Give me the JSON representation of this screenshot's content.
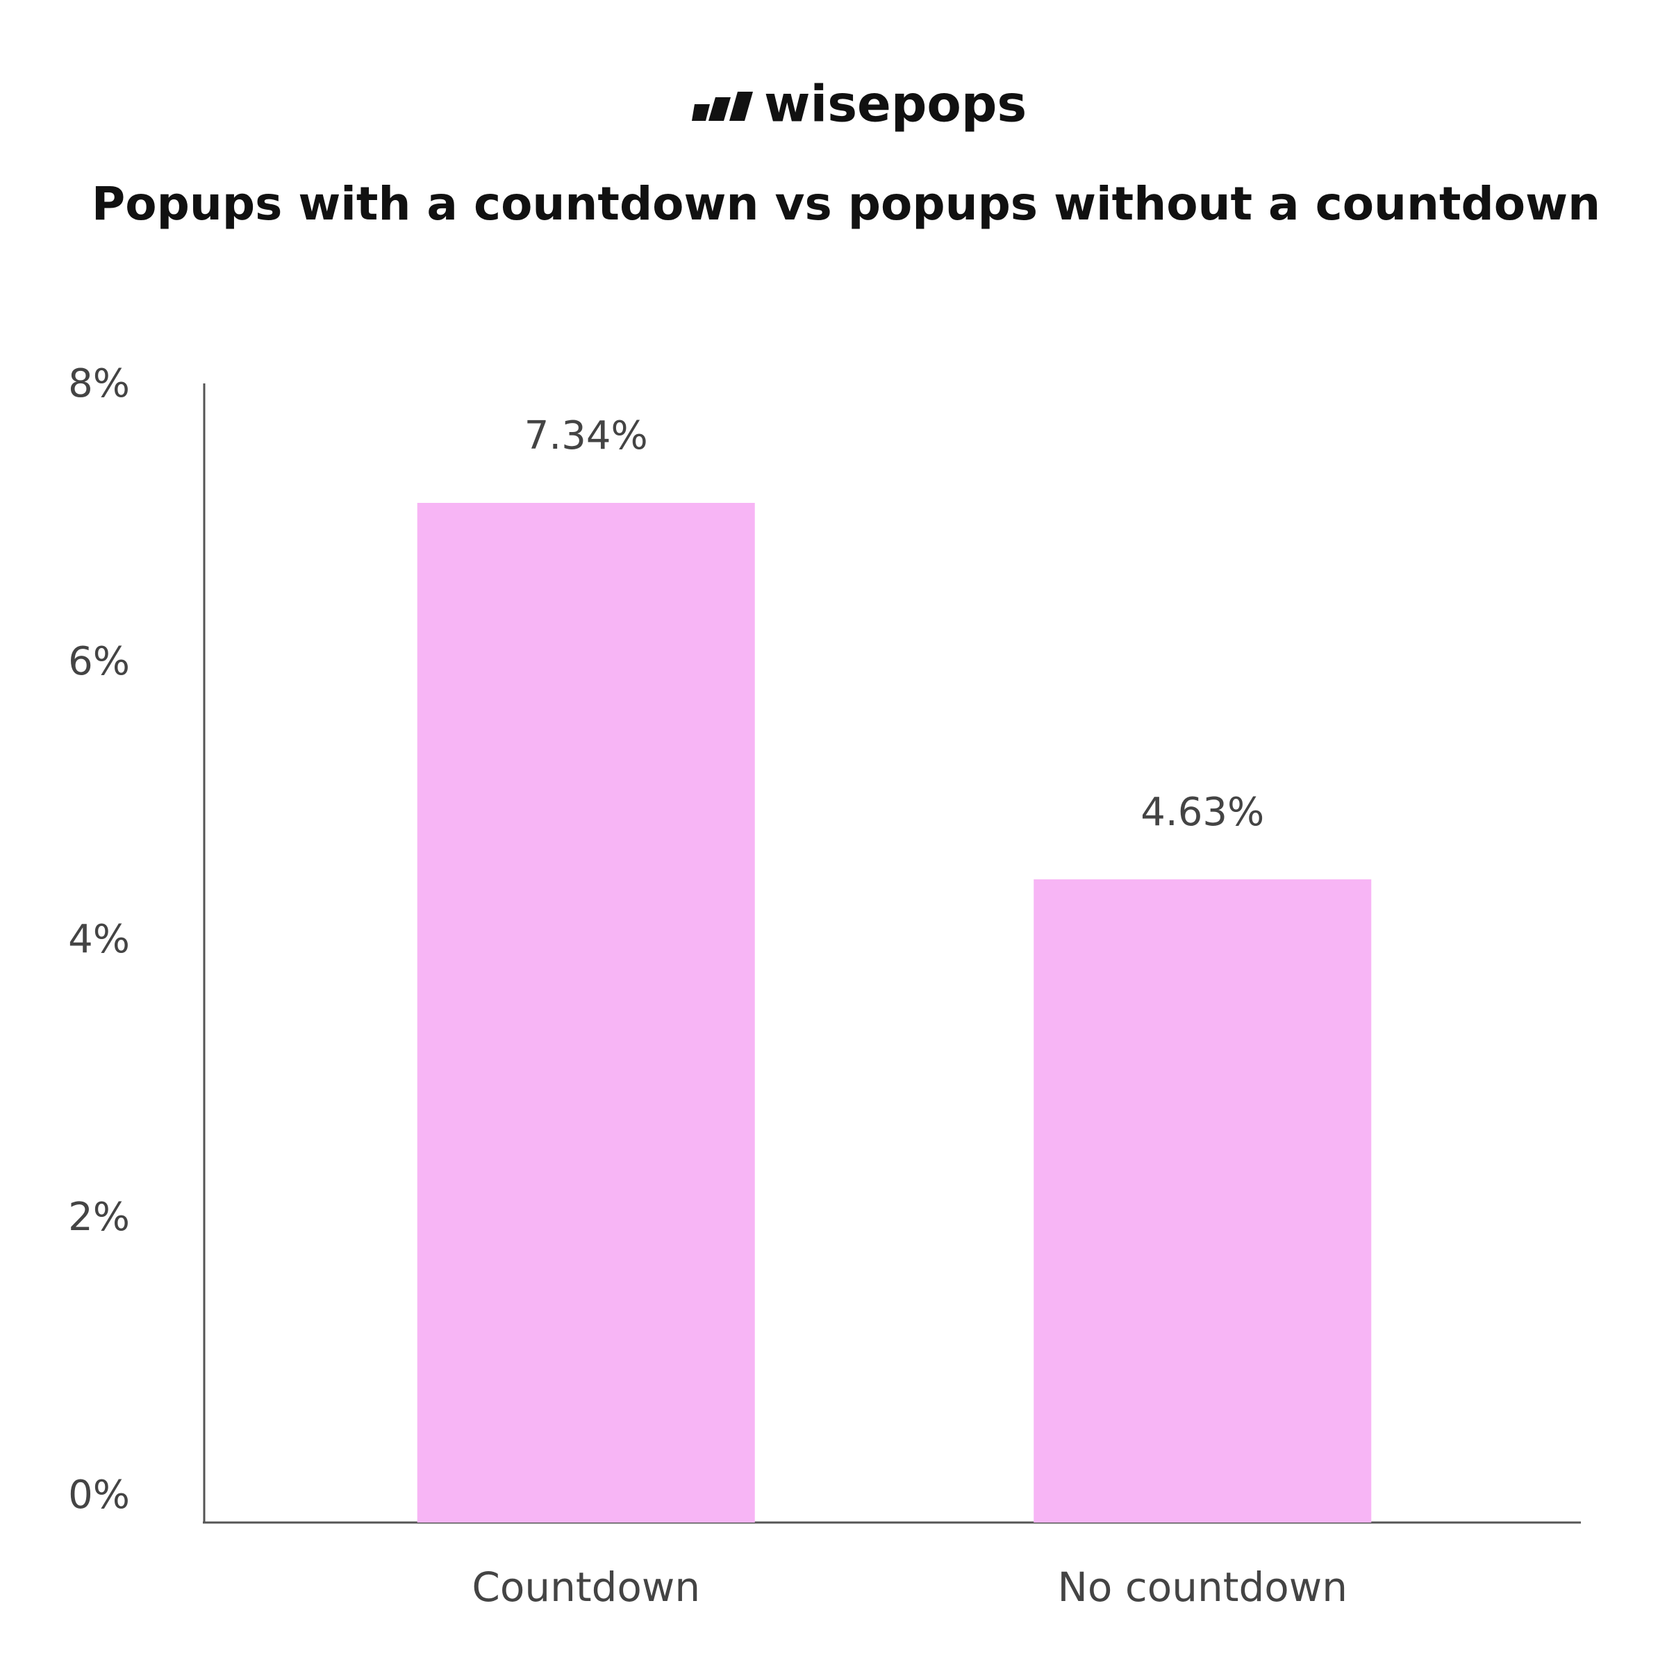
{
  "brand": "wisepops",
  "chart_data": {
    "type": "bar",
    "title": "Popups with a countdown vs popups without a countdown",
    "categories": [
      "Countdown",
      "No countdown"
    ],
    "values": [
      7.34,
      4.63
    ],
    "value_labels": [
      "7.34%",
      "4.63%"
    ],
    "color": "#f7b5f5",
    "ylim": [
      0,
      8
    ],
    "yticks": [
      {
        "value": 0,
        "label": "0%"
      },
      {
        "value": 2,
        "label": "2%"
      },
      {
        "value": 4,
        "label": "4%"
      },
      {
        "value": 6,
        "label": "6%"
      },
      {
        "value": 8,
        "label": "8%"
      }
    ],
    "grid": false
  }
}
